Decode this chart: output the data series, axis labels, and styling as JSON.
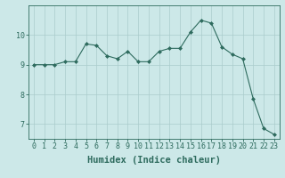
{
  "x": [
    0,
    1,
    2,
    3,
    4,
    5,
    6,
    7,
    8,
    9,
    10,
    11,
    12,
    13,
    14,
    15,
    16,
    17,
    18,
    19,
    20,
    21,
    22,
    23
  ],
  "y": [
    9.0,
    9.0,
    9.0,
    9.1,
    9.1,
    9.7,
    9.65,
    9.3,
    9.2,
    9.45,
    9.1,
    9.1,
    9.45,
    9.55,
    9.55,
    10.1,
    10.5,
    10.4,
    9.6,
    9.35,
    9.2,
    7.85,
    6.85,
    6.65
  ],
  "line_color": "#2e6b5e",
  "marker": "D",
  "marker_size": 2,
  "bg_color": "#cce8e8",
  "grid_color": "#aacccc",
  "xlabel": "Humidex (Indice chaleur)",
  "ylim": [
    6.5,
    11.0
  ],
  "xlim": [
    -0.5,
    23.5
  ],
  "yticks": [
    7,
    8,
    9,
    10
  ],
  "xticks": [
    0,
    1,
    2,
    3,
    4,
    5,
    6,
    7,
    8,
    9,
    10,
    11,
    12,
    13,
    14,
    15,
    16,
    17,
    18,
    19,
    20,
    21,
    22,
    23
  ],
  "tick_color": "#2e6b5e",
  "label_fontsize": 7,
  "tick_fontsize": 6,
  "xlabel_fontsize": 7.5
}
